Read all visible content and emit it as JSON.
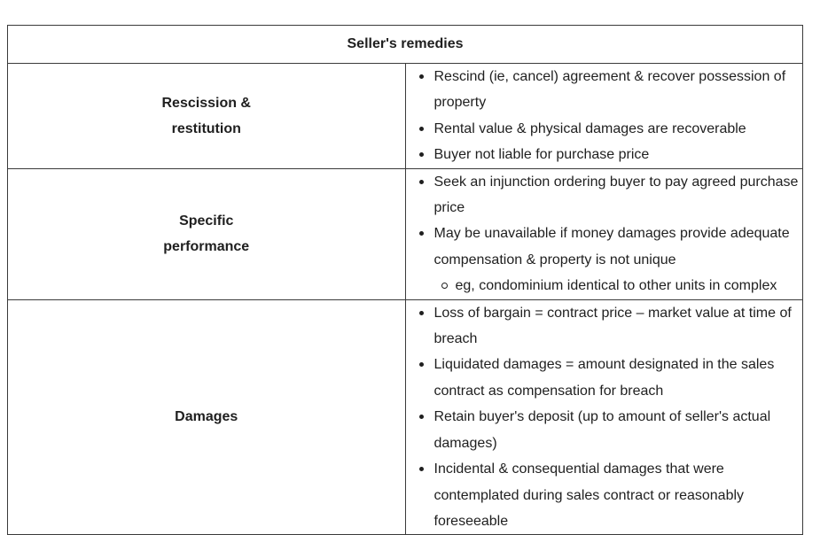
{
  "table": {
    "title": "Seller's remedies",
    "rows": [
      {
        "heading_line1": "Rescission &",
        "heading_line2": "restitution",
        "items": [
          "Rescind (ie, cancel) agreement & recover possession of property",
          "Rental value &  physical damages are recoverable",
          "Buyer not liable for purchase price"
        ]
      },
      {
        "heading_line1": "Specific",
        "heading_line2": "performance",
        "items": [
          "Seek an injunction ordering buyer to pay agreed purchase price",
          "May be unavailable if money damages provide adequate compensation & property is not unique"
        ],
        "subitems": [
          "eg, condominium identical to other units in complex"
        ]
      },
      {
        "heading_line1": "Damages",
        "items": [
          "Loss of bargain = contract price – market value at time of breach",
          "Liquidated damages = amount designated in the sales contract as compensation for breach",
          "Retain buyer's deposit (up to amount of seller's actual damages)",
          "Incidental & consequential damages that were contemplated during sales contract or reasonably foreseeable"
        ]
      }
    ]
  }
}
